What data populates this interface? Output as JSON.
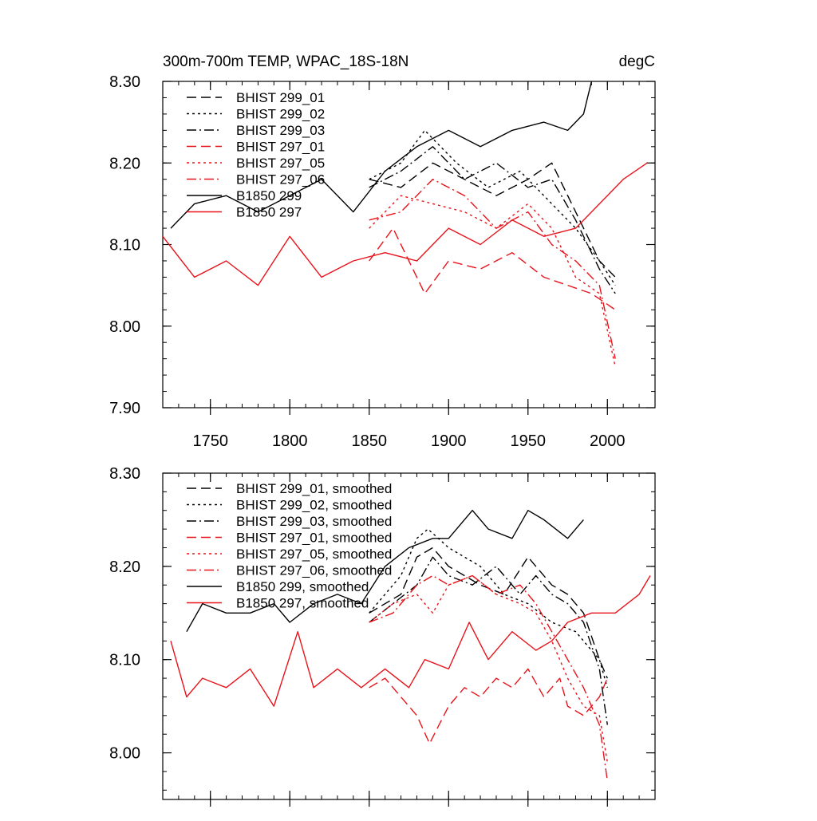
{
  "chart_data": [
    {
      "type": "line",
      "title": "300m-700m TEMP, WPAC_18S-18N",
      "units": "degC",
      "xlabel": "",
      "ylabel": "",
      "xlim": [
        1720,
        2030
      ],
      "ylim": [
        7.9,
        8.3
      ],
      "xticks": [
        {
          "value": 1750,
          "label": "1750"
        },
        {
          "value": 1800,
          "label": "1800"
        },
        {
          "value": 1850,
          "label": "1850"
        },
        {
          "value": 1900,
          "label": "1900"
        },
        {
          "value": 1950,
          "label": "1950"
        },
        {
          "value": 2000,
          "label": "2000"
        }
      ],
      "yticks": [
        {
          "value": 7.9,
          "label": "7.90"
        },
        {
          "value": 8.0,
          "label": "8.00"
        },
        {
          "value": 8.1,
          "label": "8.10"
        },
        {
          "value": 8.2,
          "label": "8.20"
        },
        {
          "value": 8.3,
          "label": "8.30"
        }
      ],
      "legend_position": "top-left",
      "series": [
        {
          "name": "BHIST 299_01",
          "color": "#000000",
          "dash": "dashed",
          "x": [
            1850,
            1870,
            1890,
            1910,
            1930,
            1950,
            1965,
            1980,
            1995,
            2005
          ],
          "values": [
            8.18,
            8.17,
            8.2,
            8.18,
            8.16,
            8.18,
            8.2,
            8.14,
            8.08,
            8.06
          ]
        },
        {
          "name": "BHIST 299_02",
          "color": "#000000",
          "dash": "dotted",
          "x": [
            1850,
            1870,
            1885,
            1905,
            1925,
            1945,
            1965,
            1980,
            1995,
            2005
          ],
          "values": [
            8.18,
            8.2,
            8.24,
            8.2,
            8.17,
            8.19,
            8.15,
            8.12,
            8.08,
            8.05
          ]
        },
        {
          "name": "BHIST 299_03",
          "color": "#000000",
          "dash": "dashdot",
          "x": [
            1850,
            1870,
            1890,
            1910,
            1930,
            1950,
            1965,
            1980,
            1995,
            2005
          ],
          "values": [
            8.17,
            8.19,
            8.22,
            8.18,
            8.2,
            8.17,
            8.18,
            8.13,
            8.07,
            8.04
          ]
        },
        {
          "name": "BHIST 297_01",
          "color": "#e8131b",
          "dash": "dashed",
          "x": [
            1850,
            1865,
            1885,
            1900,
            1920,
            1940,
            1960,
            1975,
            1990,
            2005
          ],
          "values": [
            8.08,
            8.12,
            8.04,
            8.08,
            8.07,
            8.09,
            8.06,
            8.05,
            8.04,
            8.02
          ]
        },
        {
          "name": "BHIST 297_05",
          "color": "#e8131b",
          "dash": "dotted",
          "x": [
            1850,
            1870,
            1890,
            1910,
            1930,
            1950,
            1965,
            1980,
            1995,
            2005
          ],
          "values": [
            8.12,
            8.16,
            8.15,
            8.14,
            8.12,
            8.15,
            8.12,
            8.06,
            8.04,
            7.95
          ]
        },
        {
          "name": "BHIST 297_06",
          "color": "#e8131b",
          "dash": "dashdot",
          "x": [
            1850,
            1870,
            1890,
            1910,
            1930,
            1950,
            1965,
            1980,
            1995,
            2005
          ],
          "values": [
            8.13,
            8.14,
            8.18,
            8.16,
            8.12,
            8.14,
            8.1,
            8.08,
            8.05,
            7.96
          ]
        },
        {
          "name": "B1850 299",
          "color": "#000000",
          "dash": "solid",
          "x": [
            1725,
            1740,
            1760,
            1780,
            1800,
            1820,
            1840,
            1860,
            1880,
            1900,
            1920,
            1940,
            1960,
            1975,
            1985,
            1990
          ],
          "values": [
            8.12,
            8.15,
            8.16,
            8.14,
            8.16,
            8.18,
            8.14,
            8.19,
            8.22,
            8.24,
            8.22,
            8.24,
            8.25,
            8.24,
            8.26,
            8.3
          ]
        },
        {
          "name": "B1850 297",
          "color": "#e8131b",
          "dash": "solid",
          "x": [
            1720,
            1740,
            1760,
            1780,
            1800,
            1820,
            1840,
            1860,
            1880,
            1900,
            1920,
            1940,
            1960,
            1980,
            2000,
            2010,
            2025
          ],
          "values": [
            8.11,
            8.06,
            8.08,
            8.05,
            8.11,
            8.06,
            8.08,
            8.09,
            8.08,
            8.12,
            8.1,
            8.13,
            8.11,
            8.12,
            8.16,
            8.18,
            8.2
          ]
        }
      ]
    },
    {
      "type": "line",
      "title": "",
      "xlabel": "",
      "ylabel": "",
      "xlim": [
        1720,
        2030
      ],
      "ylim": [
        7.95,
        8.3
      ],
      "xticks": [
        {
          "value": 1750,
          "label": ""
        },
        {
          "value": 1800,
          "label": ""
        },
        {
          "value": 1850,
          "label": ""
        },
        {
          "value": 1900,
          "label": ""
        },
        {
          "value": 1950,
          "label": ""
        },
        {
          "value": 2000,
          "label": ""
        }
      ],
      "yticks": [
        {
          "value": 8.0,
          "label": "8.00"
        },
        {
          "value": 8.1,
          "label": "8.10"
        },
        {
          "value": 8.2,
          "label": "8.20"
        },
        {
          "value": 8.3,
          "label": "8.30"
        }
      ],
      "legend_position": "top-left",
      "series": [
        {
          "name": "BHIST 299_01, smoothed",
          "color": "#000000",
          "dash": "dashed",
          "x": [
            1850,
            1870,
            1880,
            1890,
            1900,
            1910,
            1920,
            1935,
            1950,
            1955,
            1965,
            1975,
            1985,
            1995,
            2000
          ],
          "values": [
            8.15,
            8.17,
            8.21,
            8.22,
            8.2,
            8.19,
            8.18,
            8.17,
            8.21,
            8.2,
            8.18,
            8.17,
            8.15,
            8.1,
            8.08
          ]
        },
        {
          "name": "BHIST 299_02, smoothed",
          "color": "#000000",
          "dash": "dotted",
          "x": [
            1850,
            1870,
            1880,
            1887,
            1900,
            1910,
            1920,
            1935,
            1950,
            1965,
            1980,
            1995,
            2000
          ],
          "values": [
            8.15,
            8.19,
            8.23,
            8.24,
            8.22,
            8.21,
            8.2,
            8.17,
            8.16,
            8.14,
            8.13,
            8.1,
            8.07
          ]
        },
        {
          "name": "BHIST 299_03, smoothed",
          "color": "#000000",
          "dash": "dashdot",
          "x": [
            1850,
            1865,
            1880,
            1890,
            1900,
            1915,
            1930,
            1945,
            1955,
            1965,
            1975,
            1985,
            1995,
            2000
          ],
          "values": [
            8.14,
            8.16,
            8.18,
            8.21,
            8.19,
            8.18,
            8.2,
            8.17,
            8.19,
            8.17,
            8.16,
            8.14,
            8.09,
            8.03
          ]
        },
        {
          "name": "BHIST 297_01, smoothed",
          "color": "#e8131b",
          "dash": "dashed",
          "x": [
            1850,
            1860,
            1870,
            1880,
            1888,
            1900,
            1910,
            1920,
            1930,
            1940,
            1950,
            1960,
            1970,
            1975,
            1985,
            1995,
            2000
          ],
          "values": [
            8.07,
            8.08,
            8.06,
            8.04,
            8.01,
            8.05,
            8.07,
            8.06,
            8.08,
            8.07,
            8.09,
            8.06,
            8.08,
            8.05,
            8.04,
            8.06,
            8.08
          ]
        },
        {
          "name": "BHIST 297_05, smoothed",
          "color": "#e8131b",
          "dash": "dotted",
          "x": [
            1850,
            1865,
            1880,
            1890,
            1900,
            1915,
            1930,
            1945,
            1955,
            1965,
            1975,
            1985,
            1995,
            2000
          ],
          "values": [
            8.14,
            8.16,
            8.17,
            8.15,
            8.18,
            8.19,
            8.17,
            8.16,
            8.15,
            8.12,
            8.08,
            8.05,
            8.04,
            7.99
          ]
        },
        {
          "name": "BHIST 297_06, smoothed",
          "color": "#e8131b",
          "dash": "dashdot",
          "x": [
            1850,
            1865,
            1880,
            1890,
            1900,
            1915,
            1930,
            1945,
            1955,
            1965,
            1975,
            1985,
            1995,
            2000
          ],
          "values": [
            8.14,
            8.15,
            8.18,
            8.19,
            8.18,
            8.19,
            8.17,
            8.18,
            8.16,
            8.13,
            8.1,
            8.07,
            8.03,
            7.97
          ]
        },
        {
          "name": "B1850 299, smoothed",
          "color": "#000000",
          "dash": "solid",
          "x": [
            1735,
            1745,
            1760,
            1775,
            1790,
            1800,
            1815,
            1830,
            1845,
            1860,
            1875,
            1890,
            1900,
            1915,
            1925,
            1940,
            1950,
            1960,
            1975,
            1985
          ],
          "values": [
            8.13,
            8.16,
            8.15,
            8.15,
            8.16,
            8.14,
            8.16,
            8.17,
            8.16,
            8.2,
            8.22,
            8.23,
            8.23,
            8.26,
            8.24,
            8.23,
            8.26,
            8.25,
            8.23,
            8.25
          ]
        },
        {
          "name": "B1850 297, smoothed",
          "color": "#e8131b",
          "dash": "solid",
          "x": [
            1725,
            1735,
            1745,
            1760,
            1775,
            1790,
            1805,
            1815,
            1830,
            1845,
            1860,
            1875,
            1885,
            1900,
            1913,
            1925,
            1940,
            1955,
            1965,
            1975,
            1990,
            2005,
            2020,
            2027
          ],
          "values": [
            8.12,
            8.06,
            8.08,
            8.07,
            8.09,
            8.05,
            8.13,
            8.07,
            8.09,
            8.07,
            8.09,
            8.07,
            8.1,
            8.09,
            8.14,
            8.1,
            8.13,
            8.11,
            8.12,
            8.14,
            8.15,
            8.15,
            8.17,
            8.19
          ]
        }
      ]
    }
  ]
}
